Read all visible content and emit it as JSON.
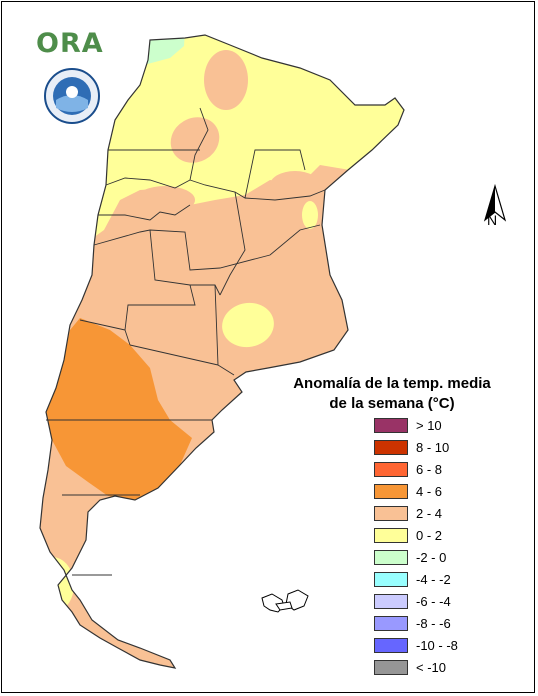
{
  "logo": {
    "text": "ORA"
  },
  "seal": {
    "icon": "institutional-seal-icon"
  },
  "north_arrow": {
    "label": "N",
    "icon": "north-arrow-icon"
  },
  "legend": {
    "title_line1": "Anomalía de la temp. media",
    "title_line2": "de la semana (°C)",
    "items": [
      {
        "label": "> 10",
        "color": "#993366"
      },
      {
        "label": "8 - 10",
        "color": "#cc3300"
      },
      {
        "label": "6 - 8",
        "color": "#ff6633"
      },
      {
        "label": "4 - 6",
        "color": "#f79636"
      },
      {
        "label": "2 - 4",
        "color": "#f9c195"
      },
      {
        "label": "0 - 2",
        "color": "#ffff99"
      },
      {
        "label": "-2 - 0",
        "color": "#ccffcc"
      },
      {
        "label": "-4 - -2",
        "color": "#99ffff"
      },
      {
        "label": "-6 - -4",
        "color": "#ccccff"
      },
      {
        "label": "-8 - -6",
        "color": "#9999ff"
      },
      {
        "label": "-10 - -8",
        "color": "#6666ff"
      },
      {
        "label": "< -10",
        "color": "#969696"
      }
    ]
  },
  "map_colors": {
    "cat_4_6": "#f79636",
    "cat_2_4": "#f9c195",
    "cat_0_2": "#ffff99",
    "cat_m2_0": "#ccffcc",
    "border": "#333333"
  }
}
